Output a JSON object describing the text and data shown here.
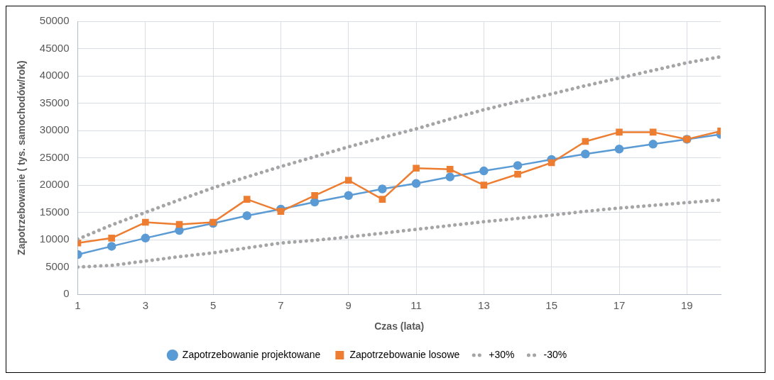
{
  "chart_data": {
    "type": "line",
    "xlabel": "Czas (lata)",
    "ylabel": "Zapotrzebowanie ( tys. samochodów/rok)",
    "x": [
      1,
      2,
      3,
      4,
      5,
      6,
      7,
      8,
      9,
      10,
      11,
      12,
      13,
      14,
      15,
      16,
      17,
      18,
      19,
      20
    ],
    "xlim": [
      1,
      20
    ],
    "xticks": [
      1,
      3,
      5,
      7,
      9,
      11,
      13,
      15,
      17,
      19
    ],
    "series": [
      {
        "name": "Zapotrzebowanie projektowane",
        "color": "#5b9bd5",
        "marker": "circle",
        "line_style": "solid",
        "values": [
          7300,
          8800,
          10300,
          11700,
          13000,
          14400,
          15600,
          16900,
          18100,
          19300,
          20300,
          21500,
          22600,
          23600,
          24700,
          25700,
          26600,
          27500,
          28400,
          29300
        ]
      },
      {
        "name": "Zapotrzebowanie losowe",
        "color": "#ed7d31",
        "marker": "square",
        "line_style": "solid",
        "values": [
          9400,
          10300,
          13200,
          12800,
          13200,
          17400,
          15200,
          18100,
          20900,
          17400,
          23100,
          22900,
          20000,
          22000,
          24100,
          28000,
          29700,
          29700,
          28400,
          29900
        ]
      },
      {
        "name": "+30%",
        "color": "#a5a5a5",
        "marker": "none",
        "line_style": "dotted",
        "values": [
          10100,
          12700,
          15000,
          17300,
          19500,
          21500,
          23400,
          25200,
          27000,
          28700,
          30300,
          32100,
          33800,
          35300,
          36700,
          38200,
          39600,
          41000,
          42400,
          43500
        ]
      },
      {
        "name": "-30%",
        "color": "#a5a5a5",
        "marker": "none",
        "line_style": "dotted",
        "values": [
          5000,
          5300,
          6100,
          6900,
          7600,
          8500,
          9400,
          9900,
          10500,
          11200,
          11900,
          12600,
          13300,
          13900,
          14500,
          15200,
          15800,
          16300,
          16800,
          17300
        ]
      }
    ],
    "ylim": [
      0,
      50000
    ],
    "yticks": [
      0,
      5000,
      10000,
      15000,
      20000,
      25000,
      30000,
      35000,
      40000,
      45000,
      50000
    ],
    "grid": true,
    "legend": "bottom"
  }
}
